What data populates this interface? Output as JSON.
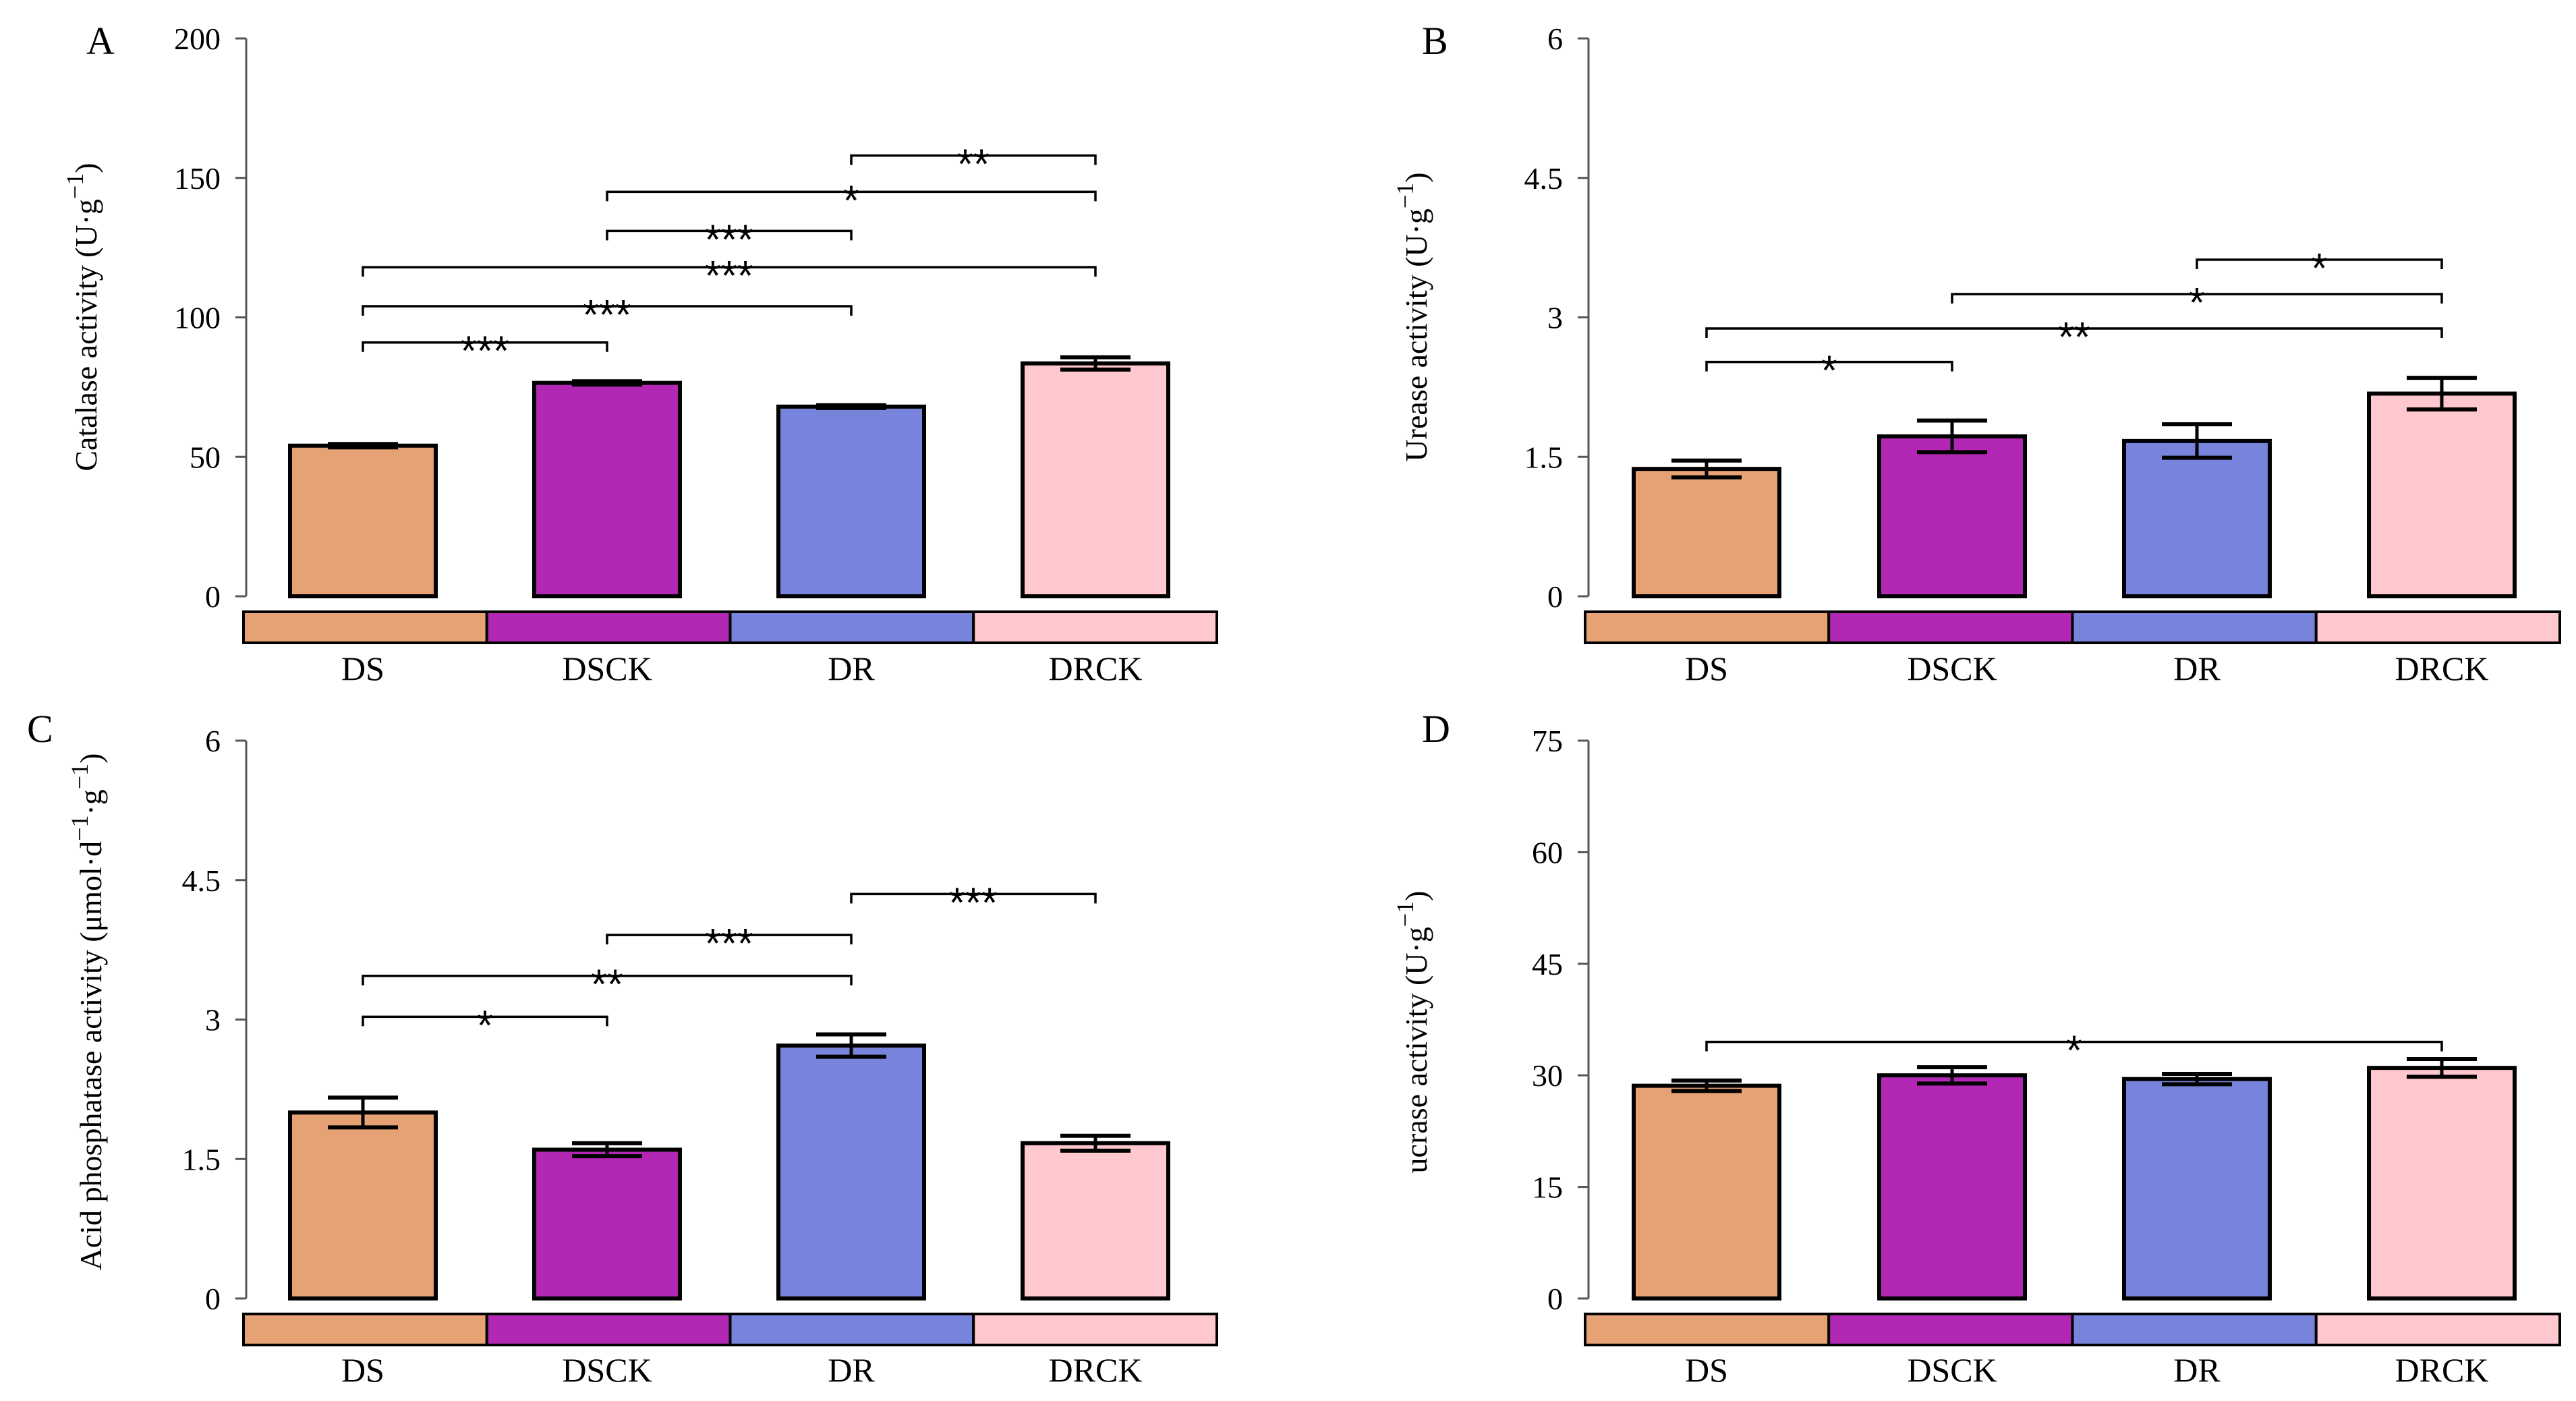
{
  "figure": {
    "panels": [
      {
        "id": "A",
        "label": "A",
        "ylabel": "Catalase activity (U·g",
        "ylabel_sup": "−1",
        "ylabel_tail": ")"
      },
      {
        "id": "B",
        "label": "B",
        "ylabel": "Urease activity (U·g",
        "ylabel_sup": "−1",
        "ylabel_tail": ")"
      },
      {
        "id": "C",
        "label": "C",
        "ylabel": "Acid phosphatase activity (μmol·d",
        "ylabel_sup": "−1",
        "ylabel_mid": "·g",
        "ylabel_sup2": "−1",
        "ylabel_tail": ")"
      },
      {
        "id": "D",
        "label": "D",
        "ylabel": "ucrase activity (U·g",
        "ylabel_sup": "−1",
        "ylabel_tail": ")"
      }
    ]
  },
  "colors": {
    "DS": "#E6A274",
    "DSCK": "#B228B4",
    "DR": "#7884DC",
    "DRCK": "#FFC8CE"
  },
  "chart_data": [
    {
      "type": "bar",
      "panel": "A",
      "title": "",
      "categories": [
        "DS",
        "DSCK",
        "DR",
        "DRCK"
      ],
      "values": [
        54,
        76.5,
        68,
        83.5
      ],
      "errors": [
        0.6,
        0.6,
        0.5,
        2.2
      ],
      "ylabel": "Catalase activity (U·g−1)",
      "ylim": [
        0,
        200
      ],
      "yticks": [
        0,
        50,
        100,
        150,
        200
      ],
      "ytick_labels": [
        "0",
        "50",
        "100",
        "150",
        "200"
      ],
      "grid": false,
      "significance": [
        {
          "from": 0,
          "to": 1,
          "y": 91,
          "label": "***"
        },
        {
          "from": 0,
          "to": 2,
          "y": 104,
          "label": "***"
        },
        {
          "from": 0,
          "to": 3,
          "y": 118,
          "label": "***"
        },
        {
          "from": 1,
          "to": 2,
          "y": 131,
          "label": "***"
        },
        {
          "from": 1,
          "to": 3,
          "y": 145,
          "label": "*"
        },
        {
          "from": 2,
          "to": 3,
          "y": 158,
          "label": "**"
        }
      ]
    },
    {
      "type": "bar",
      "panel": "B",
      "title": "",
      "categories": [
        "DS",
        "DSCK",
        "DR",
        "DRCK"
      ],
      "values": [
        1.37,
        1.72,
        1.67,
        2.18
      ],
      "errors": [
        0.09,
        0.17,
        0.18,
        0.17
      ],
      "ylabel": "Urease activity (U·g−1)",
      "ylim": [
        0,
        6
      ],
      "yticks": [
        0,
        1.5,
        3,
        4.5,
        6
      ],
      "ytick_labels": [
        "0",
        "1.5",
        "3",
        "4.5",
        "6"
      ],
      "grid": false,
      "significance": [
        {
          "from": 0,
          "to": 1,
          "y": 2.52,
          "label": "*"
        },
        {
          "from": 0,
          "to": 3,
          "y": 2.88,
          "label": "**"
        },
        {
          "from": 1,
          "to": 3,
          "y": 3.25,
          "label": "*"
        },
        {
          "from": 2,
          "to": 3,
          "y": 3.62,
          "label": "*"
        }
      ]
    },
    {
      "type": "bar",
      "panel": "C",
      "title": "",
      "categories": [
        "DS",
        "DSCK",
        "DR",
        "DRCK"
      ],
      "values": [
        2.0,
        1.6,
        2.72,
        1.67
      ],
      "errors": [
        0.16,
        0.07,
        0.12,
        0.08
      ],
      "ylabel": "Acid phosphatase activity (μmol·d−1·g−1)",
      "ylim": [
        0,
        6
      ],
      "yticks": [
        0,
        1.5,
        3,
        4.5,
        6
      ],
      "ytick_labels": [
        "0",
        "1.5",
        "3",
        "4.5",
        "6"
      ],
      "grid": false,
      "significance": [
        {
          "from": 0,
          "to": 1,
          "y": 3.03,
          "label": "*"
        },
        {
          "from": 0,
          "to": 2,
          "y": 3.47,
          "label": "**"
        },
        {
          "from": 1,
          "to": 2,
          "y": 3.91,
          "label": "***"
        },
        {
          "from": 2,
          "to": 3,
          "y": 4.35,
          "label": "***"
        }
      ]
    },
    {
      "type": "bar",
      "panel": "D",
      "title": "",
      "categories": [
        "DS",
        "DSCK",
        "DR",
        "DRCK"
      ],
      "values": [
        28.6,
        30.0,
        29.5,
        31.0
      ],
      "errors": [
        0.7,
        1.1,
        0.7,
        1.2
      ],
      "ylabel": "ucrase activity (U·g−1)",
      "ylim": [
        0,
        75
      ],
      "yticks": [
        0,
        15,
        30,
        45,
        60,
        75
      ],
      "ytick_labels": [
        "0",
        "15",
        "30",
        "45",
        "60",
        "75"
      ],
      "grid": false,
      "significance": [
        {
          "from": 0,
          "to": 3,
          "y": 34.5,
          "label": "*"
        }
      ]
    }
  ]
}
